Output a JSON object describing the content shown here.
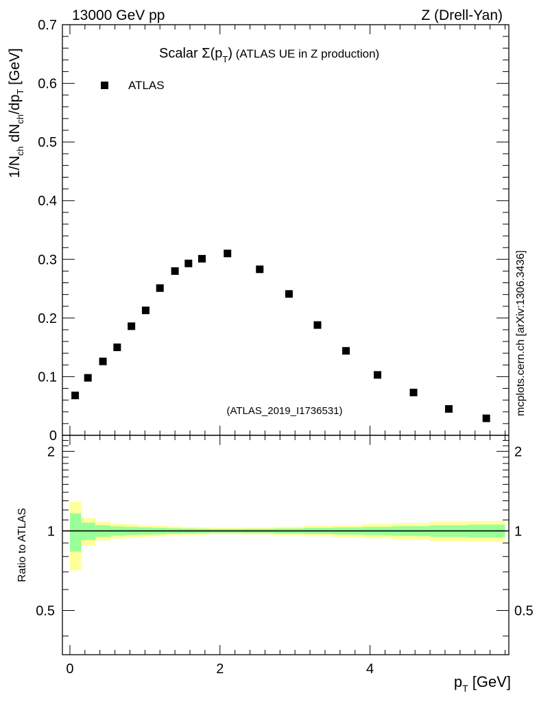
{
  "header": {
    "left": "13000 GeV pp",
    "right": "Z (Drell-Yan)"
  },
  "side_label": "mcplots.cern.ch [arXiv:1306.3436]",
  "chart_data": {
    "type": "scatter",
    "title_main": "Scalar ",
    "title_sigma": "Σ(p",
    "title_sub": "T",
    "title_close": ")",
    "title_rest": " (ATLAS UE in Z production)",
    "legend": {
      "marker": "square",
      "label": "ATLAS",
      "placement": "top-left"
    },
    "analysis_tag": "(ATLAS_2019_I1736531)",
    "ylabel_top": {
      "p1": "1/N",
      "s1": "ch",
      "p2": " dN",
      "s2": "ch",
      "p3": "/dp",
      "s3": "T",
      "p4": " [GeV]"
    },
    "ylabel_bottom": "Ratio to ATLAS",
    "xlabel_main": "p",
    "xlabel_sub": "T",
    "xlabel_unit": " [GeV]",
    "xlim": [
      -0.1,
      5.85
    ],
    "ylim_top": [
      0,
      0.7
    ],
    "ylim_ratio": [
      0.34,
      2.3
    ],
    "x_ticks": [
      "0",
      "2",
      "4"
    ],
    "y_ticks_top": [
      "0",
      "0.1",
      "0.2",
      "0.3",
      "0.4",
      "0.5",
      "0.6",
      "0.7"
    ],
    "y_ticks_ratio": [
      "0.5",
      "1",
      "2"
    ],
    "series": [
      {
        "name": "ATLAS",
        "x": [
          0.07,
          0.24,
          0.44,
          0.63,
          0.82,
          1.01,
          1.2,
          1.4,
          1.58,
          1.76,
          2.1,
          2.53,
          2.92,
          3.3,
          3.68,
          4.1,
          4.58,
          5.05,
          5.55
        ],
        "y": [
          0.068,
          0.098,
          0.126,
          0.15,
          0.186,
          0.213,
          0.251,
          0.28,
          0.293,
          0.301,
          0.31,
          0.283,
          0.241,
          0.188,
          0.144,
          0.103,
          0.073,
          0.045,
          0.029
        ]
      }
    ],
    "ratio_bands": {
      "edges": [
        0.0,
        0.15,
        0.34,
        0.54,
        0.73,
        0.92,
        1.11,
        1.3,
        1.49,
        1.68,
        1.87,
        2.3,
        2.72,
        3.11,
        3.5,
        3.9,
        4.3,
        4.8,
        5.3,
        5.8
      ],
      "yellow_half": [
        0.29,
        0.12,
        0.08,
        0.065,
        0.058,
        0.052,
        0.046,
        0.04,
        0.035,
        0.032,
        0.028,
        0.03,
        0.036,
        0.045,
        0.052,
        0.062,
        0.072,
        0.085,
        0.09
      ],
      "green_half": [
        0.165,
        0.075,
        0.05,
        0.04,
        0.035,
        0.031,
        0.028,
        0.024,
        0.021,
        0.019,
        0.017,
        0.018,
        0.022,
        0.027,
        0.031,
        0.036,
        0.042,
        0.05,
        0.055
      ]
    },
    "colors": {
      "yellow": "#ffff99",
      "green": "#99ff99",
      "marker": "#000000",
      "grey_text": "#999999"
    }
  }
}
